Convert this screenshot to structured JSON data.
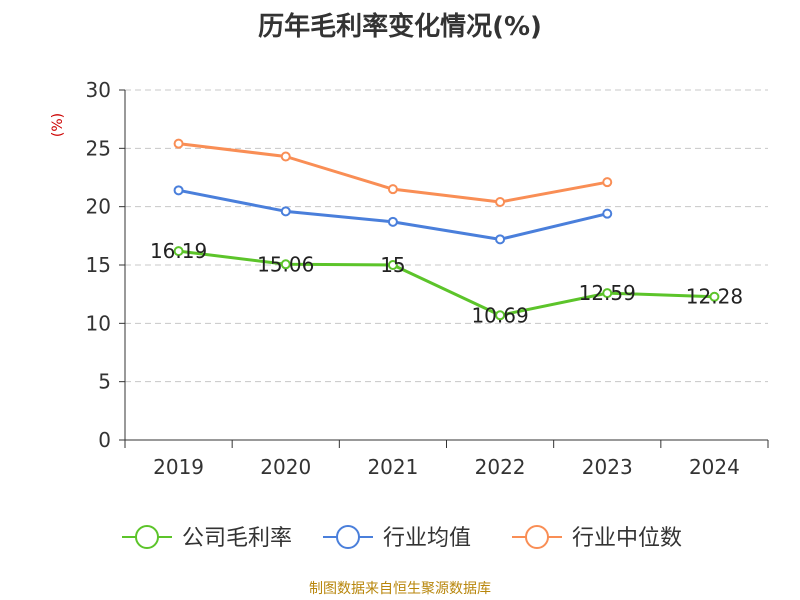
{
  "title": "历年毛利率变化情况(%)",
  "footer": "制图数据来自恒生聚源数据库",
  "chart_data": {
    "type": "line",
    "title": "历年毛利率变化情况(%)",
    "ylabel": "(%)",
    "xlabel": "",
    "categories": [
      "2019",
      "2020",
      "2021",
      "2022",
      "2023",
      "2024"
    ],
    "ylim": [
      0,
      30
    ],
    "yticks": [
      0,
      5,
      10,
      15,
      20,
      25,
      30
    ],
    "grid": true,
    "legend_position": "bottom",
    "series": [
      {
        "name": "公司毛利率",
        "color": "#5cc42a",
        "values": [
          16.19,
          15.06,
          15,
          10.69,
          12.59,
          12.28
        ],
        "labels": [
          "16.19",
          "15.06",
          "15",
          "10.69",
          "12.59",
          "12.28"
        ]
      },
      {
        "name": "行业均值",
        "color": "#4a7fdb",
        "values": [
          21.4,
          19.6,
          18.7,
          17.2,
          19.4,
          null
        ]
      },
      {
        "name": "行业中位数",
        "color": "#f98e55",
        "values": [
          25.4,
          24.3,
          21.5,
          20.4,
          22.1,
          null
        ]
      }
    ]
  }
}
